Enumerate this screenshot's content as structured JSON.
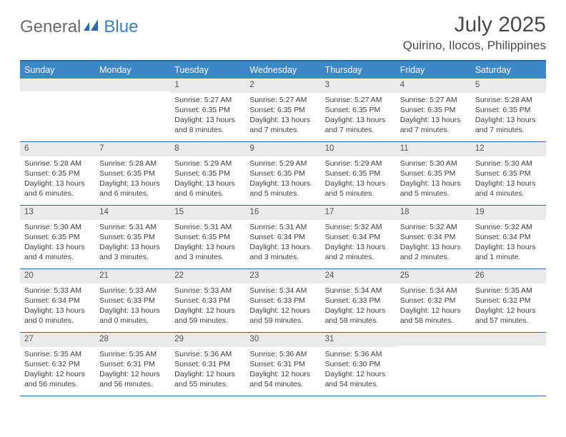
{
  "brand": {
    "word1": "General",
    "word2": "Blue"
  },
  "title": "July 2025",
  "location": "Quirino, Ilocos, Philippines",
  "colors": {
    "header_bar": "#3b87c8",
    "rule": "#2f6aa8",
    "daynum_bg": "#eaeaea",
    "text": "#3d3d3d",
    "logo_gray": "#6b6b6b",
    "logo_blue": "#3b7fc4"
  },
  "day_names": [
    "Sunday",
    "Monday",
    "Tuesday",
    "Wednesday",
    "Thursday",
    "Friday",
    "Saturday"
  ],
  "weeks": [
    [
      null,
      null,
      {
        "n": "1",
        "sunrise": "5:27 AM",
        "sunset": "6:35 PM",
        "daylight": "13 hours and 8 minutes."
      },
      {
        "n": "2",
        "sunrise": "5:27 AM",
        "sunset": "6:35 PM",
        "daylight": "13 hours and 7 minutes."
      },
      {
        "n": "3",
        "sunrise": "5:27 AM",
        "sunset": "6:35 PM",
        "daylight": "13 hours and 7 minutes."
      },
      {
        "n": "4",
        "sunrise": "5:27 AM",
        "sunset": "6:35 PM",
        "daylight": "13 hours and 7 minutes."
      },
      {
        "n": "5",
        "sunrise": "5:28 AM",
        "sunset": "6:35 PM",
        "daylight": "13 hours and 7 minutes."
      }
    ],
    [
      {
        "n": "6",
        "sunrise": "5:28 AM",
        "sunset": "6:35 PM",
        "daylight": "13 hours and 6 minutes."
      },
      {
        "n": "7",
        "sunrise": "5:28 AM",
        "sunset": "6:35 PM",
        "daylight": "13 hours and 6 minutes."
      },
      {
        "n": "8",
        "sunrise": "5:29 AM",
        "sunset": "6:35 PM",
        "daylight": "13 hours and 6 minutes."
      },
      {
        "n": "9",
        "sunrise": "5:29 AM",
        "sunset": "6:35 PM",
        "daylight": "13 hours and 5 minutes."
      },
      {
        "n": "10",
        "sunrise": "5:29 AM",
        "sunset": "6:35 PM",
        "daylight": "13 hours and 5 minutes."
      },
      {
        "n": "11",
        "sunrise": "5:30 AM",
        "sunset": "6:35 PM",
        "daylight": "13 hours and 5 minutes."
      },
      {
        "n": "12",
        "sunrise": "5:30 AM",
        "sunset": "6:35 PM",
        "daylight": "13 hours and 4 minutes."
      }
    ],
    [
      {
        "n": "13",
        "sunrise": "5:30 AM",
        "sunset": "6:35 PM",
        "daylight": "13 hours and 4 minutes."
      },
      {
        "n": "14",
        "sunrise": "5:31 AM",
        "sunset": "6:35 PM",
        "daylight": "13 hours and 3 minutes."
      },
      {
        "n": "15",
        "sunrise": "5:31 AM",
        "sunset": "6:35 PM",
        "daylight": "13 hours and 3 minutes."
      },
      {
        "n": "16",
        "sunrise": "5:31 AM",
        "sunset": "6:34 PM",
        "daylight": "13 hours and 3 minutes."
      },
      {
        "n": "17",
        "sunrise": "5:32 AM",
        "sunset": "6:34 PM",
        "daylight": "13 hours and 2 minutes."
      },
      {
        "n": "18",
        "sunrise": "5:32 AM",
        "sunset": "6:34 PM",
        "daylight": "13 hours and 2 minutes."
      },
      {
        "n": "19",
        "sunrise": "5:32 AM",
        "sunset": "6:34 PM",
        "daylight": "13 hours and 1 minute."
      }
    ],
    [
      {
        "n": "20",
        "sunrise": "5:33 AM",
        "sunset": "6:34 PM",
        "daylight": "13 hours and 0 minutes."
      },
      {
        "n": "21",
        "sunrise": "5:33 AM",
        "sunset": "6:33 PM",
        "daylight": "13 hours and 0 minutes."
      },
      {
        "n": "22",
        "sunrise": "5:33 AM",
        "sunset": "6:33 PM",
        "daylight": "12 hours and 59 minutes."
      },
      {
        "n": "23",
        "sunrise": "5:34 AM",
        "sunset": "6:33 PM",
        "daylight": "12 hours and 59 minutes."
      },
      {
        "n": "24",
        "sunrise": "5:34 AM",
        "sunset": "6:33 PM",
        "daylight": "12 hours and 58 minutes."
      },
      {
        "n": "25",
        "sunrise": "5:34 AM",
        "sunset": "6:32 PM",
        "daylight": "12 hours and 58 minutes."
      },
      {
        "n": "26",
        "sunrise": "5:35 AM",
        "sunset": "6:32 PM",
        "daylight": "12 hours and 57 minutes."
      }
    ],
    [
      {
        "n": "27",
        "sunrise": "5:35 AM",
        "sunset": "6:32 PM",
        "daylight": "12 hours and 56 minutes."
      },
      {
        "n": "28",
        "sunrise": "5:35 AM",
        "sunset": "6:31 PM",
        "daylight": "12 hours and 56 minutes."
      },
      {
        "n": "29",
        "sunrise": "5:36 AM",
        "sunset": "6:31 PM",
        "daylight": "12 hours and 55 minutes."
      },
      {
        "n": "30",
        "sunrise": "5:36 AM",
        "sunset": "6:31 PM",
        "daylight": "12 hours and 54 minutes."
      },
      {
        "n": "31",
        "sunrise": "5:36 AM",
        "sunset": "6:30 PM",
        "daylight": "12 hours and 54 minutes."
      },
      null,
      null
    ]
  ],
  "labels": {
    "sunrise": "Sunrise:",
    "sunset": "Sunset:",
    "daylight": "Daylight:"
  }
}
